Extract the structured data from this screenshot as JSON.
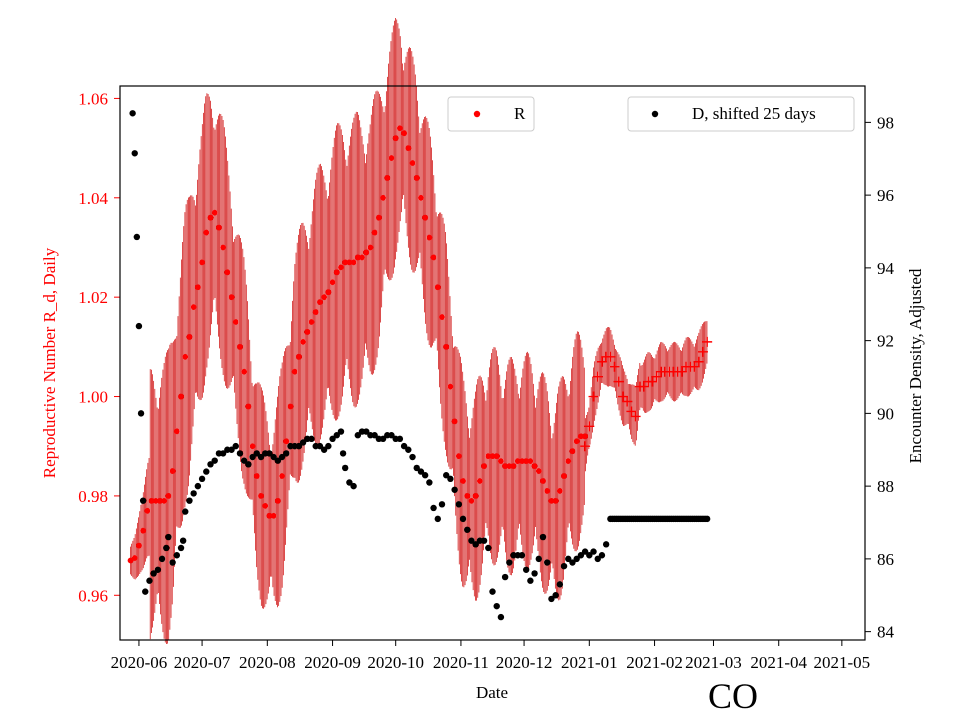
{
  "chart_data": {
    "type": "scatter",
    "title": "",
    "corner_label": "CO",
    "xlabel": "Date",
    "x_ticks": [
      "2020-06",
      "2020-07",
      "2020-08",
      "2020-09",
      "2020-10",
      "2020-11",
      "2020-12",
      "2021-01",
      "2021-02",
      "2021-03",
      "2021-04",
      "2021-05"
    ],
    "x_range_days": [
      -9,
      345
    ],
    "x_origin_date": "2020-06-01",
    "left_axis": {
      "label": "Reproductive Number R_d, Daily",
      "color": "#ff0000",
      "ylim": [
        0.951,
        1.0625
      ],
      "ticks": [
        0.96,
        0.98,
        1.0,
        1.02,
        1.04,
        1.06
      ]
    },
    "right_axis": {
      "label": "Encounter Density, Adjusted",
      "color": "#000000",
      "ylim": [
        83.77,
        99.0
      ],
      "ticks": [
        84,
        86,
        88,
        90,
        92,
        94,
        96,
        98
      ]
    },
    "legend": [
      {
        "name": "R",
        "color": "#ff0000",
        "marker": "dot",
        "placement": "top-center"
      },
      {
        "name": "D, shifted 25 days",
        "color": "#000000",
        "marker": "dot",
        "placement": "top-right"
      }
    ],
    "series": [
      {
        "name": "R",
        "axis": "left",
        "color": "#ff0000",
        "marker": "dot",
        "error_band": "vertical bars, half-width varies 0.004-0.028",
        "points": [
          [
            -4,
            0.967
          ],
          [
            -2,
            0.9675
          ],
          [
            0,
            0.97
          ],
          [
            2,
            0.973
          ],
          [
            4,
            0.977
          ],
          [
            6,
            0.979
          ],
          [
            8,
            0.979
          ],
          [
            10,
            0.979
          ],
          [
            12,
            0.979
          ],
          [
            14,
            0.98
          ],
          [
            16,
            0.985
          ],
          [
            18,
            0.993
          ],
          [
            20,
            1.0
          ],
          [
            22,
            1.008
          ],
          [
            24,
            1.012
          ],
          [
            26,
            1.018
          ],
          [
            28,
            1.022
          ],
          [
            30,
            1.027
          ],
          [
            32,
            1.033
          ],
          [
            34,
            1.036
          ],
          [
            36,
            1.037
          ],
          [
            38,
            1.034
          ],
          [
            40,
            1.03
          ],
          [
            42,
            1.025
          ],
          [
            44,
            1.02
          ],
          [
            46,
            1.015
          ],
          [
            48,
            1.01
          ],
          [
            50,
            1.005
          ],
          [
            52,
            0.998
          ],
          [
            54,
            0.99
          ],
          [
            56,
            0.984
          ],
          [
            58,
            0.98
          ],
          [
            60,
            0.978
          ],
          [
            62,
            0.976
          ],
          [
            64,
            0.976
          ],
          [
            66,
            0.979
          ],
          [
            68,
            0.984
          ],
          [
            70,
            0.991
          ],
          [
            72,
            0.998
          ],
          [
            74,
            1.005
          ],
          [
            76,
            1.008
          ],
          [
            78,
            1.011
          ],
          [
            80,
            1.013
          ],
          [
            82,
            1.015
          ],
          [
            84,
            1.017
          ],
          [
            86,
            1.019
          ],
          [
            88,
            1.02
          ],
          [
            90,
            1.021
          ],
          [
            92,
            1.023
          ],
          [
            94,
            1.025
          ],
          [
            96,
            1.026
          ],
          [
            98,
            1.027
          ],
          [
            100,
            1.027
          ],
          [
            102,
            1.027
          ],
          [
            104,
            1.028
          ],
          [
            106,
            1.028
          ],
          [
            108,
            1.029
          ],
          [
            110,
            1.03
          ],
          [
            112,
            1.033
          ],
          [
            114,
            1.036
          ],
          [
            116,
            1.04
          ],
          [
            118,
            1.044
          ],
          [
            120,
            1.048
          ],
          [
            122,
            1.052
          ],
          [
            124,
            1.054
          ],
          [
            126,
            1.053
          ],
          [
            128,
            1.05
          ],
          [
            130,
            1.047
          ],
          [
            132,
            1.044
          ],
          [
            134,
            1.04
          ],
          [
            136,
            1.036
          ],
          [
            138,
            1.032
          ],
          [
            140,
            1.028
          ],
          [
            142,
            1.022
          ],
          [
            144,
            1.016
          ],
          [
            146,
            1.01
          ],
          [
            148,
            1.002
          ],
          [
            150,
            0.995
          ],
          [
            152,
            0.988
          ],
          [
            154,
            0.983
          ],
          [
            156,
            0.98
          ],
          [
            158,
            0.979
          ],
          [
            160,
            0.98
          ],
          [
            162,
            0.983
          ],
          [
            164,
            0.986
          ],
          [
            166,
            0.988
          ],
          [
            168,
            0.988
          ],
          [
            170,
            0.988
          ],
          [
            172,
            0.987
          ],
          [
            174,
            0.986
          ],
          [
            176,
            0.986
          ],
          [
            178,
            0.986
          ],
          [
            180,
            0.987
          ],
          [
            182,
            0.987
          ],
          [
            184,
            0.987
          ],
          [
            186,
            0.987
          ],
          [
            188,
            0.986
          ],
          [
            190,
            0.985
          ],
          [
            192,
            0.983
          ],
          [
            194,
            0.981
          ],
          [
            196,
            0.979
          ],
          [
            198,
            0.979
          ],
          [
            200,
            0.981
          ],
          [
            202,
            0.984
          ],
          [
            204,
            0.987
          ],
          [
            206,
            0.989
          ],
          [
            208,
            0.991
          ],
          [
            210,
            0.992
          ],
          [
            212,
            0.992
          ]
        ]
      },
      {
        "name": "R (plus markers)",
        "axis": "left",
        "color": "#ff0000",
        "marker": "plus",
        "points": [
          [
            212,
            0.99
          ],
          [
            214,
            0.994
          ],
          [
            216,
            1.0
          ],
          [
            218,
            1.004
          ],
          [
            220,
            1.007
          ],
          [
            222,
            1.008
          ],
          [
            224,
            1.008
          ],
          [
            226,
            1.006
          ],
          [
            228,
            1.003
          ],
          [
            230,
            1.0
          ],
          [
            232,
            0.999
          ],
          [
            234,
            0.997
          ],
          [
            236,
            0.996
          ],
          [
            238,
            1.002
          ],
          [
            240,
            1.002
          ],
          [
            242,
            1.003
          ],
          [
            244,
            1.003
          ],
          [
            246,
            1.004
          ],
          [
            248,
            1.005
          ],
          [
            250,
            1.005
          ],
          [
            252,
            1.005
          ],
          [
            254,
            1.005
          ],
          [
            256,
            1.005
          ],
          [
            258,
            1.005
          ],
          [
            260,
            1.006
          ],
          [
            262,
            1.006
          ],
          [
            264,
            1.006
          ],
          [
            266,
            1.007
          ],
          [
            268,
            1.009
          ],
          [
            270,
            1.011
          ]
        ]
      },
      {
        "name": "D, shifted 25 days",
        "axis": "right",
        "color": "#000000",
        "marker": "dot",
        "points": [
          [
            -3,
            98.25
          ],
          [
            -2,
            97.15
          ],
          [
            -1,
            94.85
          ],
          [
            0,
            92.4
          ],
          [
            1,
            90.0
          ],
          [
            2,
            87.6
          ],
          [
            3,
            85.1
          ],
          [
            5,
            85.4
          ],
          [
            7,
            85.6
          ],
          [
            9,
            85.7
          ],
          [
            11,
            86.0
          ],
          [
            13,
            86.3
          ],
          [
            14,
            86.6
          ],
          [
            16,
            85.9
          ],
          [
            18,
            86.1
          ],
          [
            20,
            86.3
          ],
          [
            21,
            86.5
          ],
          [
            22,
            87.3
          ],
          [
            24,
            87.6
          ],
          [
            26,
            87.8
          ],
          [
            28,
            88.0
          ],
          [
            30,
            88.2
          ],
          [
            32,
            88.4
          ],
          [
            34,
            88.6
          ],
          [
            36,
            88.7
          ],
          [
            38,
            88.9
          ],
          [
            40,
            88.9
          ],
          [
            42,
            89.0
          ],
          [
            44,
            89.0
          ],
          [
            46,
            89.1
          ],
          [
            48,
            88.9
          ],
          [
            50,
            88.7
          ],
          [
            52,
            88.6
          ],
          [
            54,
            88.8
          ],
          [
            56,
            88.9
          ],
          [
            58,
            88.8
          ],
          [
            60,
            88.9
          ],
          [
            62,
            88.9
          ],
          [
            64,
            88.8
          ],
          [
            66,
            88.7
          ],
          [
            68,
            88.8
          ],
          [
            70,
            88.9
          ],
          [
            72,
            89.1
          ],
          [
            74,
            89.1
          ],
          [
            76,
            89.1
          ],
          [
            78,
            89.2
          ],
          [
            80,
            89.3
          ],
          [
            82,
            89.3
          ],
          [
            84,
            89.1
          ],
          [
            86,
            89.1
          ],
          [
            88,
            89.0
          ],
          [
            90,
            89.1
          ],
          [
            92,
            89.3
          ],
          [
            94,
            89.4
          ],
          [
            96,
            89.5
          ],
          [
            97,
            88.9
          ],
          [
            98,
            88.5
          ],
          [
            100,
            88.1
          ],
          [
            102,
            88.0
          ],
          [
            104,
            89.4
          ],
          [
            106,
            89.5
          ],
          [
            108,
            89.5
          ],
          [
            110,
            89.4
          ],
          [
            112,
            89.4
          ],
          [
            114,
            89.3
          ],
          [
            116,
            89.3
          ],
          [
            118,
            89.4
          ],
          [
            120,
            89.4
          ],
          [
            122,
            89.3
          ],
          [
            124,
            89.3
          ],
          [
            126,
            89.1
          ],
          [
            128,
            89.0
          ],
          [
            130,
            88.8
          ],
          [
            132,
            88.5
          ],
          [
            134,
            88.4
          ],
          [
            136,
            88.3
          ],
          [
            138,
            88.1
          ],
          [
            140,
            87.4
          ],
          [
            142,
            87.1
          ],
          [
            144,
            87.5
          ],
          [
            146,
            88.3
          ],
          [
            148,
            88.2
          ],
          [
            150,
            87.9
          ],
          [
            152,
            87.5
          ],
          [
            154,
            87.1
          ],
          [
            156,
            86.8
          ],
          [
            158,
            86.5
          ],
          [
            160,
            86.4
          ],
          [
            162,
            86.5
          ],
          [
            164,
            86.5
          ],
          [
            166,
            86.3
          ],
          [
            168,
            85.1
          ],
          [
            170,
            84.7
          ],
          [
            172,
            84.4
          ],
          [
            174,
            85.5
          ],
          [
            176,
            85.9
          ],
          [
            178,
            86.1
          ],
          [
            180,
            86.1
          ],
          [
            182,
            86.1
          ],
          [
            184,
            85.7
          ],
          [
            186,
            85.4
          ],
          [
            188,
            85.6
          ],
          [
            190,
            86.0
          ],
          [
            192,
            86.6
          ],
          [
            194,
            85.9
          ],
          [
            196,
            84.9
          ],
          [
            198,
            85.0
          ],
          [
            200,
            85.3
          ],
          [
            202,
            85.8
          ],
          [
            204,
            86.0
          ],
          [
            206,
            85.9
          ],
          [
            208,
            86.0
          ],
          [
            210,
            86.1
          ],
          [
            212,
            86.2
          ],
          [
            214,
            86.1
          ],
          [
            216,
            86.2
          ],
          [
            218,
            86.0
          ],
          [
            220,
            86.1
          ],
          [
            222,
            86.4
          ],
          [
            224,
            87.1
          ],
          [
            230,
            87.1
          ],
          [
            236,
            87.1
          ],
          [
            242,
            87.1
          ],
          [
            248,
            87.1
          ],
          [
            254,
            87.1
          ],
          [
            260,
            87.1
          ],
          [
            266,
            87.1
          ],
          [
            270,
            87.1
          ]
        ]
      }
    ]
  }
}
